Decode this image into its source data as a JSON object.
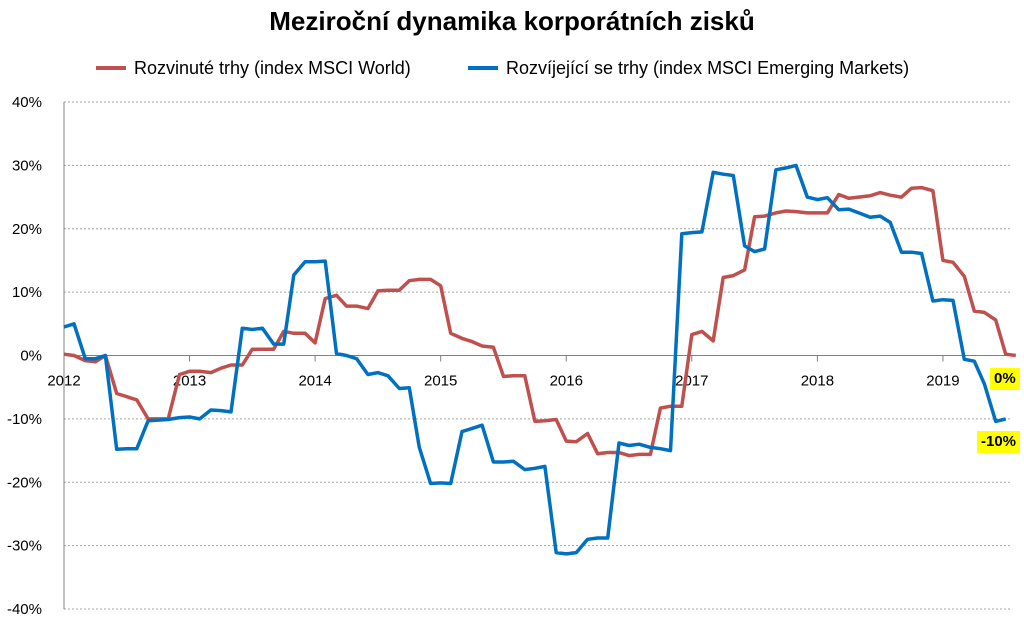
{
  "chart_data": {
    "type": "line",
    "title": "Meziroční dynamika korporátních zisků",
    "xlabel": "",
    "ylabel": "",
    "ylim": [
      -40,
      40
    ],
    "xlim": [
      2012,
      2019.55
    ],
    "grid": "horizontal",
    "legend_position": "top",
    "y_ticks": [
      "40%",
      "30%",
      "20%",
      "10%",
      "0%",
      "-10%",
      "-20%",
      "-30%",
      "-40%"
    ],
    "y_tick_values": [
      40,
      30,
      20,
      10,
      0,
      -10,
      -20,
      -30,
      -40
    ],
    "x_ticks": [
      "2012",
      "2013",
      "2014",
      "2015",
      "2016",
      "2017",
      "2018",
      "2019"
    ],
    "x_tick_values": [
      2012,
      2013,
      2014,
      2015,
      2016,
      2017,
      2018,
      2019
    ],
    "series": [
      {
        "name": "Rozvinuté trhy (index MSCI World)",
        "color": "#c0504d",
        "end_label": "0%",
        "points": [
          [
            2012.0,
            0.2
          ],
          [
            2012.08,
            0.0
          ],
          [
            2012.17,
            -0.8
          ],
          [
            2012.25,
            -1.0
          ],
          [
            2012.33,
            0.0
          ],
          [
            2012.42,
            -6.0
          ],
          [
            2012.5,
            -6.5
          ],
          [
            2012.58,
            -7.0
          ],
          [
            2012.67,
            -10.0
          ],
          [
            2012.75,
            -10.0
          ],
          [
            2012.83,
            -10.0
          ],
          [
            2012.92,
            -3.0
          ],
          [
            2013.0,
            -2.5
          ],
          [
            2013.08,
            -2.5
          ],
          [
            2013.17,
            -2.7
          ],
          [
            2013.25,
            -2.0
          ],
          [
            2013.33,
            -1.5
          ],
          [
            2013.42,
            -1.5
          ],
          [
            2013.5,
            1.0
          ],
          [
            2013.58,
            1.0
          ],
          [
            2013.67,
            1.0
          ],
          [
            2013.75,
            3.8
          ],
          [
            2013.83,
            3.5
          ],
          [
            2013.92,
            3.5
          ],
          [
            2014.0,
            2.0
          ],
          [
            2014.08,
            9.0
          ],
          [
            2014.17,
            9.5
          ],
          [
            2014.25,
            7.8
          ],
          [
            2014.33,
            7.8
          ],
          [
            2014.42,
            7.4
          ],
          [
            2014.5,
            10.2
          ],
          [
            2014.58,
            10.3
          ],
          [
            2014.67,
            10.3
          ],
          [
            2014.75,
            11.8
          ],
          [
            2014.83,
            12.0
          ],
          [
            2014.92,
            12.0
          ],
          [
            2015.0,
            11.0
          ],
          [
            2015.08,
            3.5
          ],
          [
            2015.17,
            2.7
          ],
          [
            2015.25,
            2.2
          ],
          [
            2015.33,
            1.5
          ],
          [
            2015.42,
            1.3
          ],
          [
            2015.5,
            -3.3
          ],
          [
            2015.58,
            -3.2
          ],
          [
            2015.67,
            -3.2
          ],
          [
            2015.75,
            -10.4
          ],
          [
            2015.83,
            -10.3
          ],
          [
            2015.92,
            -10.1
          ],
          [
            2016.0,
            -13.5
          ],
          [
            2016.08,
            -13.6
          ],
          [
            2016.17,
            -12.3
          ],
          [
            2016.25,
            -15.5
          ],
          [
            2016.33,
            -15.3
          ],
          [
            2016.42,
            -15.3
          ],
          [
            2016.5,
            -15.8
          ],
          [
            2016.58,
            -15.6
          ],
          [
            2016.67,
            -15.6
          ],
          [
            2016.75,
            -8.3
          ],
          [
            2016.83,
            -8.0
          ],
          [
            2016.92,
            -8.0
          ],
          [
            2017.0,
            3.3
          ],
          [
            2017.08,
            3.8
          ],
          [
            2017.17,
            2.3
          ],
          [
            2017.25,
            12.3
          ],
          [
            2017.33,
            12.6
          ],
          [
            2017.42,
            13.5
          ],
          [
            2017.5,
            21.9
          ],
          [
            2017.58,
            22.0
          ],
          [
            2017.67,
            22.5
          ],
          [
            2017.75,
            22.8
          ],
          [
            2017.83,
            22.7
          ],
          [
            2017.92,
            22.5
          ],
          [
            2018.0,
            22.5
          ],
          [
            2018.08,
            22.5
          ],
          [
            2018.17,
            25.4
          ],
          [
            2018.25,
            24.8
          ],
          [
            2018.33,
            25.0
          ],
          [
            2018.42,
            25.2
          ],
          [
            2018.5,
            25.7
          ],
          [
            2018.58,
            25.3
          ],
          [
            2018.67,
            25.0
          ],
          [
            2018.75,
            26.4
          ],
          [
            2018.83,
            26.5
          ],
          [
            2018.92,
            26.0
          ],
          [
            2019.0,
            15.0
          ],
          [
            2019.08,
            14.7
          ],
          [
            2019.17,
            12.5
          ],
          [
            2019.25,
            7.0
          ],
          [
            2019.33,
            6.8
          ],
          [
            2019.42,
            5.6
          ],
          [
            2019.5,
            0.2
          ],
          [
            2019.58,
            0.0
          ]
        ]
      },
      {
        "name": "Rozvíjející se trhy (index MSCI Emerging Markets)",
        "color": "#0070c0",
        "end_label": "-10%",
        "points": [
          [
            2012.0,
            4.5
          ],
          [
            2012.08,
            5.0
          ],
          [
            2012.17,
            -0.5
          ],
          [
            2012.25,
            -0.5
          ],
          [
            2012.33,
            0.0
          ],
          [
            2012.42,
            -14.8
          ],
          [
            2012.5,
            -14.7
          ],
          [
            2012.58,
            -14.7
          ],
          [
            2012.67,
            -10.3
          ],
          [
            2012.75,
            -10.2
          ],
          [
            2012.83,
            -10.1
          ],
          [
            2012.92,
            -9.8
          ],
          [
            2013.0,
            -9.7
          ],
          [
            2013.08,
            -10.0
          ],
          [
            2013.17,
            -8.6
          ],
          [
            2013.25,
            -8.7
          ],
          [
            2013.33,
            -8.9
          ],
          [
            2013.42,
            4.3
          ],
          [
            2013.5,
            4.1
          ],
          [
            2013.58,
            4.3
          ],
          [
            2013.67,
            1.8
          ],
          [
            2013.75,
            1.8
          ],
          [
            2013.83,
            12.7
          ],
          [
            2013.92,
            14.8
          ],
          [
            2014.0,
            14.8
          ],
          [
            2014.08,
            14.9
          ],
          [
            2014.17,
            0.3
          ],
          [
            2014.25,
            0.0
          ],
          [
            2014.33,
            -0.5
          ],
          [
            2014.42,
            -3.0
          ],
          [
            2014.5,
            -2.7
          ],
          [
            2014.58,
            -3.2
          ],
          [
            2014.67,
            -5.2
          ],
          [
            2014.75,
            -5.1
          ],
          [
            2014.83,
            -14.5
          ],
          [
            2014.92,
            -20.2
          ],
          [
            2015.0,
            -20.1
          ],
          [
            2015.08,
            -20.2
          ],
          [
            2015.17,
            -12.0
          ],
          [
            2015.25,
            -11.5
          ],
          [
            2015.33,
            -11.0
          ],
          [
            2015.42,
            -16.8
          ],
          [
            2015.5,
            -16.8
          ],
          [
            2015.58,
            -16.7
          ],
          [
            2015.67,
            -18.0
          ],
          [
            2015.75,
            -17.8
          ],
          [
            2015.83,
            -17.5
          ],
          [
            2015.92,
            -31.1
          ],
          [
            2016.0,
            -31.3
          ],
          [
            2016.08,
            -31.1
          ],
          [
            2016.17,
            -29.0
          ],
          [
            2016.25,
            -28.8
          ],
          [
            2016.33,
            -28.8
          ],
          [
            2016.42,
            -13.8
          ],
          [
            2016.5,
            -14.2
          ],
          [
            2016.58,
            -14.0
          ],
          [
            2016.67,
            -14.5
          ],
          [
            2016.75,
            -14.7
          ],
          [
            2016.83,
            -15.0
          ],
          [
            2016.92,
            19.2
          ],
          [
            2017.0,
            19.4
          ],
          [
            2017.08,
            19.5
          ],
          [
            2017.17,
            28.9
          ],
          [
            2017.25,
            28.6
          ],
          [
            2017.33,
            28.4
          ],
          [
            2017.42,
            17.3
          ],
          [
            2017.5,
            16.4
          ],
          [
            2017.58,
            16.8
          ],
          [
            2017.67,
            29.3
          ],
          [
            2017.75,
            29.6
          ],
          [
            2017.83,
            30.0
          ],
          [
            2017.92,
            25.0
          ],
          [
            2018.0,
            24.6
          ],
          [
            2018.08,
            24.9
          ],
          [
            2018.17,
            23.0
          ],
          [
            2018.25,
            23.1
          ],
          [
            2018.33,
            22.5
          ],
          [
            2018.42,
            21.8
          ],
          [
            2018.5,
            22.0
          ],
          [
            2018.58,
            21.0
          ],
          [
            2018.67,
            16.3
          ],
          [
            2018.75,
            16.3
          ],
          [
            2018.83,
            16.1
          ],
          [
            2018.92,
            8.6
          ],
          [
            2019.0,
            8.8
          ],
          [
            2019.08,
            8.7
          ],
          [
            2019.17,
            -0.6
          ],
          [
            2019.25,
            -0.9
          ],
          [
            2019.33,
            -4.5
          ],
          [
            2019.42,
            -10.4
          ],
          [
            2019.5,
            -10.0
          ]
        ]
      }
    ]
  }
}
